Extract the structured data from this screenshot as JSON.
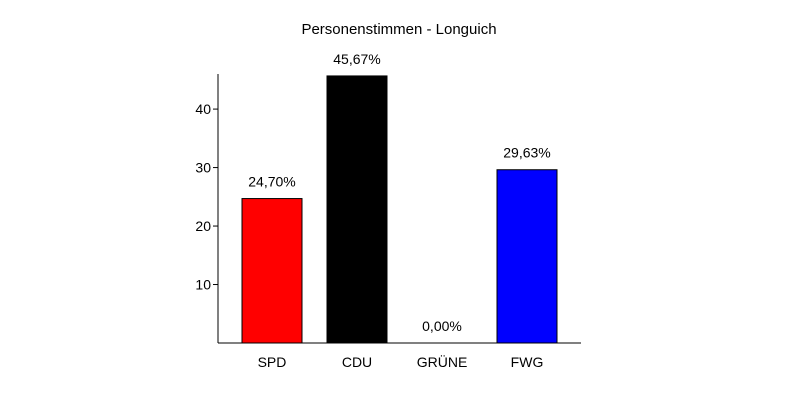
{
  "chart_data": {
    "type": "bar",
    "title": "Personenstimmen - Longuich",
    "xlabel": "",
    "ylabel": "",
    "categories": [
      "SPD",
      "CDU",
      "GRÜNE",
      "FWG"
    ],
    "values": [
      24.7,
      45.67,
      0.0,
      29.63
    ],
    "data_labels": [
      "24,70%",
      "45,67%",
      "0,00%",
      "29,63%"
    ],
    "colors": [
      "#ff0000",
      "#000000",
      "#00aa00",
      "#0000ff"
    ],
    "y_ticks": [
      10,
      20,
      30,
      40
    ],
    "y_tick_labels": [
      "10",
      "20",
      "30",
      "40"
    ],
    "ylim": [
      0,
      46
    ],
    "grid": false,
    "legend": "none"
  }
}
